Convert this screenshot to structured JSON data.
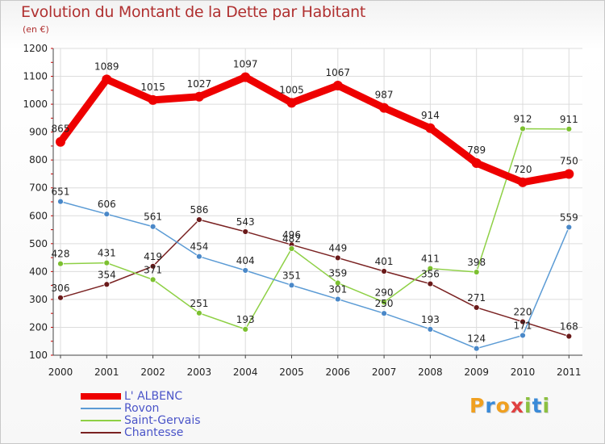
{
  "title": "Evolution du Montant de la Dette par Habitant",
  "subtitle": "(en €)",
  "logo": {
    "letters": [
      "P",
      "r",
      "o",
      "x",
      "i",
      "t",
      "i"
    ],
    "colors": [
      "#f0a020",
      "#3a8ad8",
      "#f0a020",
      "#e04040",
      "#8cc040",
      "#3a8ad8",
      "#8cc040"
    ]
  },
  "chart_data": {
    "type": "line",
    "title": "Evolution du Montant de la Dette par Habitant",
    "ylabel": "(en €)",
    "x": [
      "2000",
      "2001",
      "2002",
      "2003",
      "2004",
      "2005",
      "2006",
      "2007",
      "2008",
      "2009",
      "2010",
      "2011"
    ],
    "ylim": [
      100,
      1200
    ],
    "yticks": [
      100,
      200,
      300,
      400,
      500,
      600,
      700,
      800,
      900,
      1000,
      1100,
      1200
    ],
    "grid": true,
    "legend_position": "bottom-left",
    "series": [
      {
        "name": "L' ALBENC",
        "color": "#ee0000",
        "values": [
          865,
          1089,
          1015,
          1027,
          1097,
          1005,
          1067,
          987,
          914,
          789,
          720,
          750
        ]
      },
      {
        "name": "Rovon",
        "color": "#5b9bd5",
        "values": [
          651,
          606,
          561,
          454,
          404,
          351,
          301,
          250,
          193,
          124,
          171,
          559
        ]
      },
      {
        "name": "Saint-Gervais",
        "color": "#8ed045",
        "values": [
          428,
          431,
          371,
          251,
          193,
          482,
          359,
          290,
          411,
          398,
          912,
          911
        ]
      },
      {
        "name": "Chantesse",
        "color": "#7a2222",
        "values": [
          306,
          354,
          419,
          586,
          543,
          496,
          449,
          401,
          356,
          271,
          220,
          168
        ]
      }
    ]
  }
}
